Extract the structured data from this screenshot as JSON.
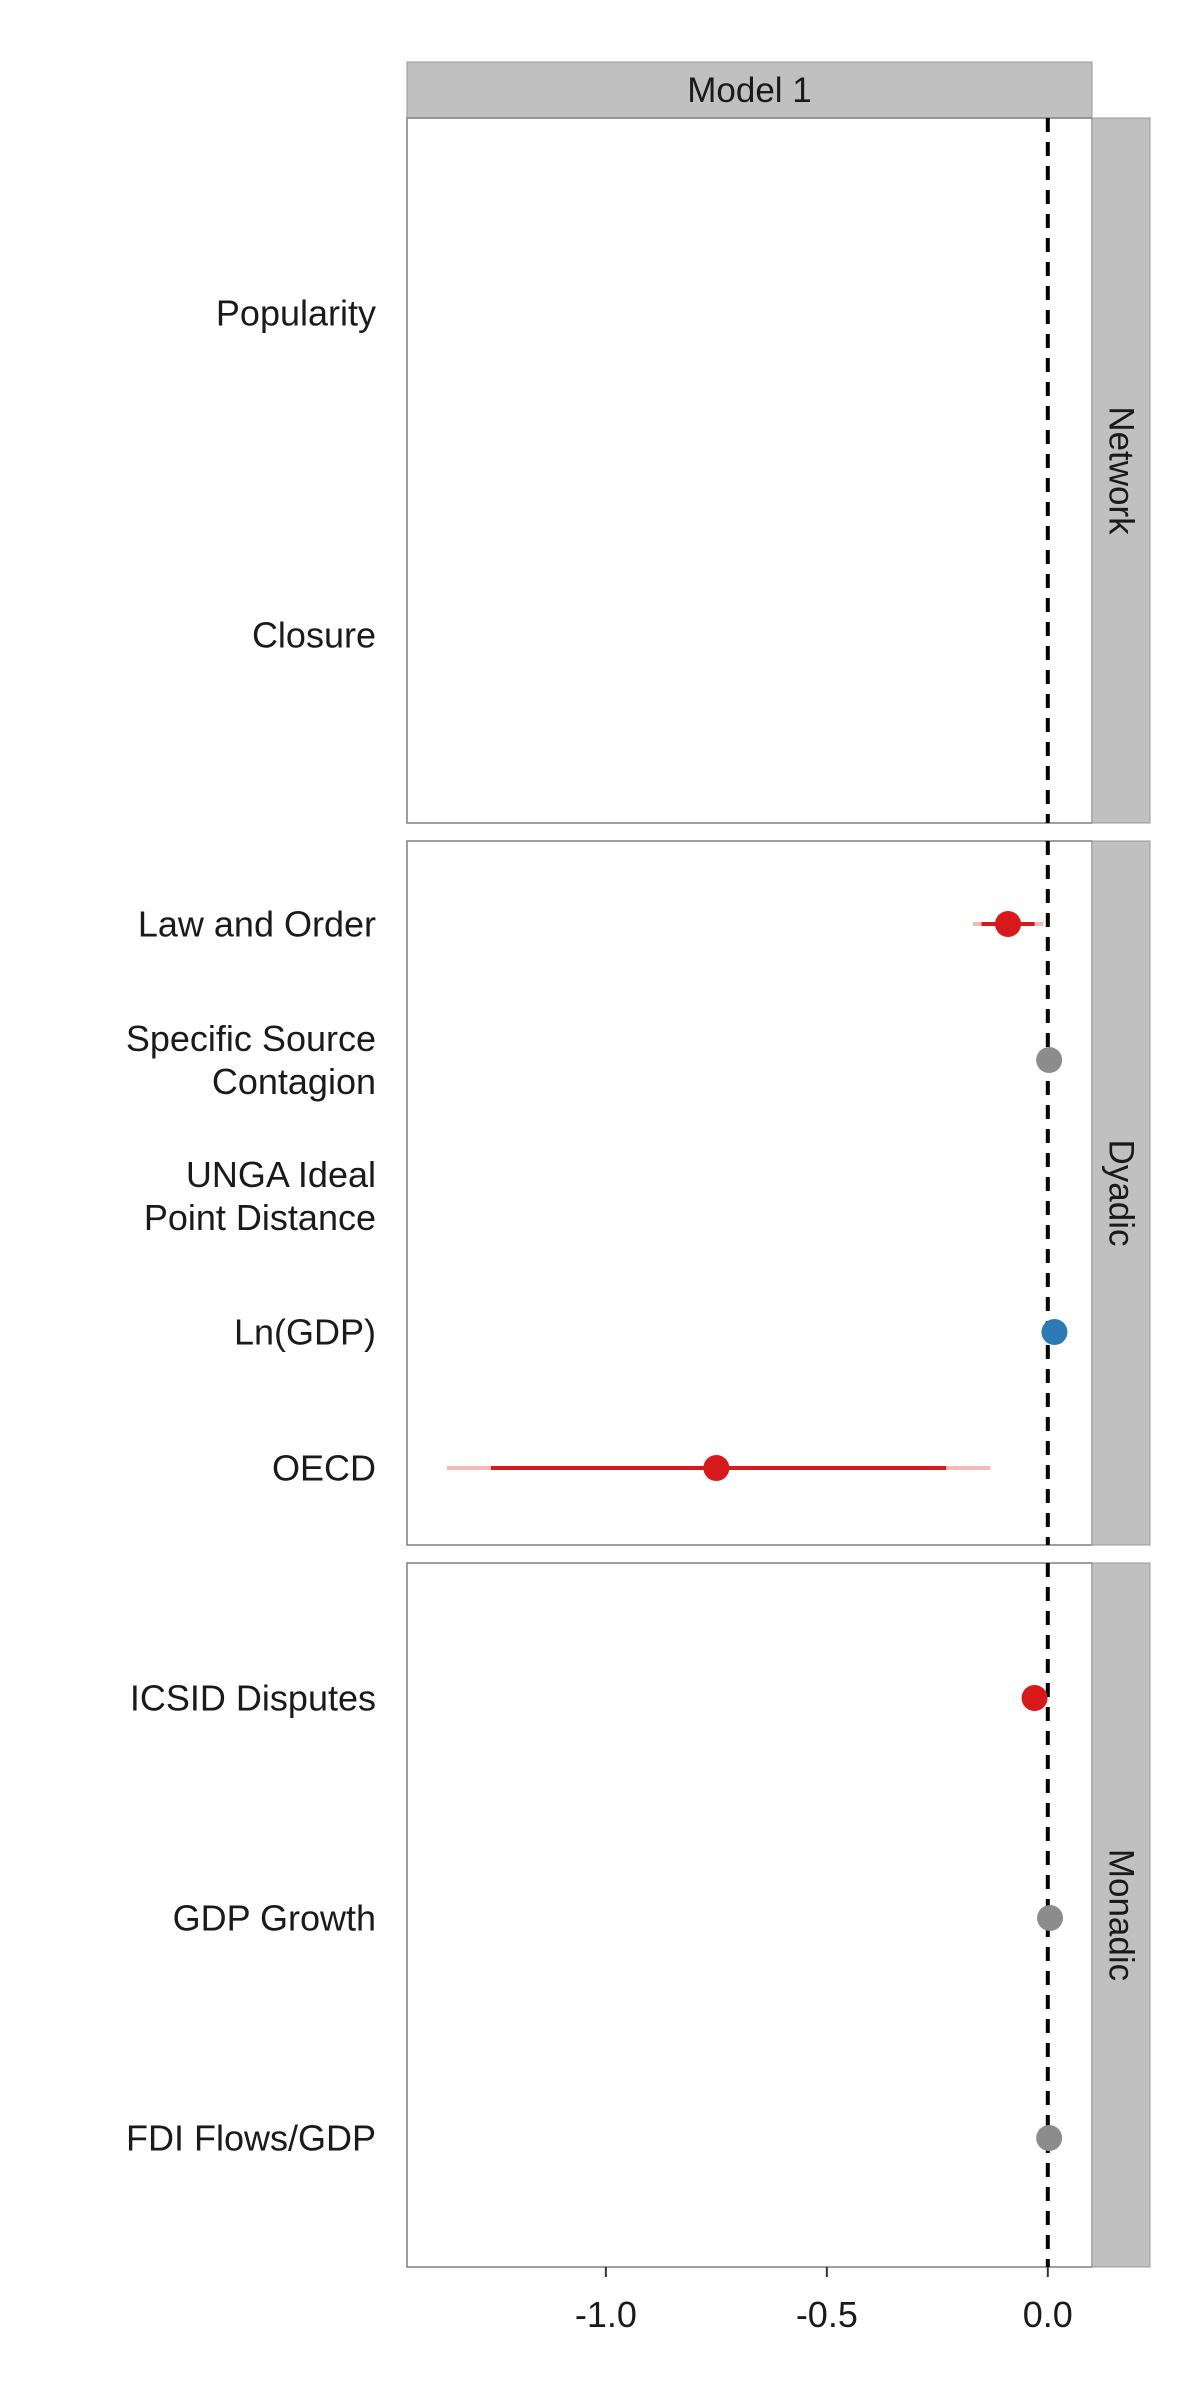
{
  "chart_data": {
    "type": "coefficient_plot",
    "model_label": "Model 1",
    "reference_line": 0.0,
    "xlim": [
      -1.45,
      0.1
    ],
    "x_ticks": [
      {
        "value": -1.0,
        "label": "-1.0"
      },
      {
        "value": -0.5,
        "label": "-0.5"
      },
      {
        "value": 0.0,
        "label": "0.0"
      }
    ],
    "grid": false,
    "colors": {
      "negative": "#d7191c",
      "positive": "#2c7bb6",
      "insignificant": "#8c8c8c",
      "strip": "#c0c0c0",
      "reference_line": "#000000"
    },
    "panels": [
      {
        "label": "Network",
        "terms": [
          {
            "label": "Popularity",
            "lines": [
              "Popularity"
            ],
            "estimate": null,
            "ci_inner": null,
            "ci_outer": null,
            "significance": null
          },
          {
            "label": "Closure",
            "lines": [
              "Closure"
            ],
            "estimate": null,
            "ci_inner": null,
            "ci_outer": null,
            "significance": null
          }
        ]
      },
      {
        "label": "Dyadic",
        "terms": [
          {
            "label": "Law and Order",
            "lines": [
              "Law and Order"
            ],
            "estimate": -0.09,
            "ci_inner": [
              -0.15,
              -0.03
            ],
            "ci_outer": [
              -0.17,
              -0.01
            ],
            "significance": "negative"
          },
          {
            "label": "Specific Source Contagion",
            "lines": [
              "Specific Source",
              "Contagion"
            ],
            "estimate": 0.003,
            "ci_inner": [
              -0.005,
              0.01
            ],
            "ci_outer": [
              -0.01,
              0.015
            ],
            "significance": "insignificant"
          },
          {
            "label": "UNGA Ideal Point Distance",
            "lines": [
              "UNGA Ideal",
              "Point Distance"
            ],
            "estimate": null,
            "ci_inner": null,
            "ci_outer": null,
            "significance": null
          },
          {
            "label": "Ln(GDP)",
            "lines": [
              "Ln(GDP)"
            ],
            "estimate": 0.015,
            "ci_inner": [
              0.005,
              0.025
            ],
            "ci_outer": [
              0.0,
              0.03
            ],
            "significance": "positive"
          },
          {
            "label": "OECD",
            "lines": [
              "OECD"
            ],
            "estimate": -0.75,
            "ci_inner": [
              -1.26,
              -0.23
            ],
            "ci_outer": [
              -1.36,
              -0.13
            ],
            "significance": "negative"
          }
        ]
      },
      {
        "label": "Monadic",
        "terms": [
          {
            "label": "ICSID Disputes",
            "lines": [
              "ICSID Disputes"
            ],
            "estimate": -0.03,
            "ci_inner": [
              -0.04,
              -0.02
            ],
            "ci_outer": [
              -0.045,
              -0.015
            ],
            "significance": "negative"
          },
          {
            "label": "GDP Growth",
            "lines": [
              "GDP Growth"
            ],
            "estimate": 0.005,
            "ci_inner": [
              0.0,
              0.01
            ],
            "ci_outer": [
              -0.005,
              0.015
            ],
            "significance": "insignificant"
          },
          {
            "label": "FDI Flows/GDP",
            "lines": [
              "FDI Flows/GDP"
            ],
            "estimate": 0.003,
            "ci_inner": [
              -0.002,
              0.008
            ],
            "ci_outer": [
              -0.007,
              0.013
            ],
            "significance": "insignificant"
          }
        ]
      }
    ]
  }
}
